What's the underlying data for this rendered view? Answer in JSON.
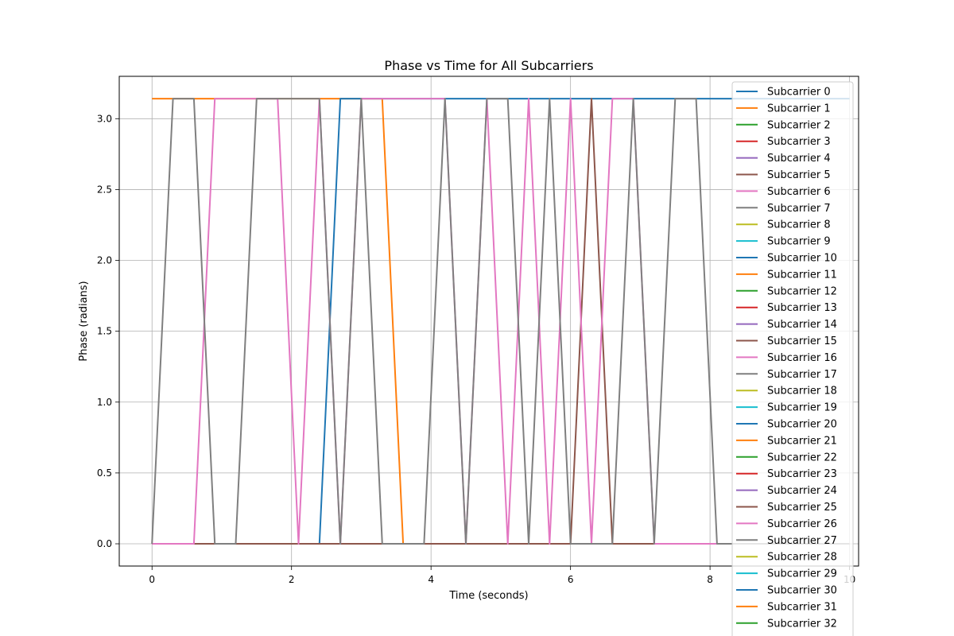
{
  "chart_data": {
    "type": "line",
    "title": "Phase vs Time for All Subcarriers",
    "xlabel": "Time (seconds)",
    "ylabel": "Phase (radians)",
    "xlim": [
      -0.47,
      10.13
    ],
    "ylim": [
      -0.157,
      3.299
    ],
    "x_ticks": [
      0,
      2,
      4,
      6,
      8,
      10
    ],
    "x_tick_labels": [
      "0",
      "2",
      "4",
      "6",
      "8",
      "10"
    ],
    "y_ticks": [
      0.0,
      0.5,
      1.0,
      1.5,
      2.0,
      2.5,
      3.0
    ],
    "y_tick_labels": [
      "0.0",
      "0.5",
      "1.0",
      "1.5",
      "2.0",
      "2.5",
      "3.0"
    ],
    "grid": true,
    "legend_position": "upper right",
    "legend_entries": [
      "Subcarrier 0",
      "Subcarrier 1",
      "Subcarrier 2",
      "Subcarrier 3",
      "Subcarrier 4",
      "Subcarrier 5",
      "Subcarrier 6",
      "Subcarrier 7",
      "Subcarrier 8",
      "Subcarrier 9",
      "Subcarrier 10",
      "Subcarrier 11",
      "Subcarrier 12",
      "Subcarrier 13",
      "Subcarrier 14",
      "Subcarrier 15",
      "Subcarrier 16",
      "Subcarrier 17",
      "Subcarrier 18",
      "Subcarrier 19",
      "Subcarrier 20",
      "Subcarrier 21",
      "Subcarrier 22",
      "Subcarrier 23",
      "Subcarrier 24",
      "Subcarrier 25",
      "Subcarrier 26",
      "Subcarrier 27",
      "Subcarrier 28",
      "Subcarrier 29",
      "Subcarrier 30",
      "Subcarrier 31",
      "Subcarrier 32"
    ],
    "palette": [
      "#1f77b4",
      "#ff7f0e",
      "#2ca02c",
      "#d62728",
      "#9467bd",
      "#8c564b",
      "#e377c2",
      "#7f7f7f",
      "#bcbd22",
      "#17becf"
    ],
    "series": [
      {
        "name": "Subcarrier 1",
        "color": "#ff7f0e",
        "x": [
          0,
          3.3,
          3.6,
          10
        ],
        "y": [
          3.1416,
          3.1416,
          0,
          0
        ]
      },
      {
        "name": "Subcarrier 30",
        "color": "#1f77b4",
        "x": [
          0,
          2.4,
          2.7,
          10
        ],
        "y": [
          0,
          0,
          3.1416,
          3.1416
        ]
      },
      {
        "name": "Subcarrier 25",
        "color": "#8c564b",
        "x": [
          0,
          6.0,
          6.3,
          6.6,
          10
        ],
        "y": [
          0,
          0,
          3.1416,
          0,
          0
        ]
      },
      {
        "name": "Subcarrier 26",
        "color": "#e377c2",
        "x": [
          0,
          0.6,
          0.9,
          1.8,
          2.1,
          2.4,
          2.7,
          3.0,
          4.2,
          4.5,
          4.8,
          5.1,
          5.4,
          5.7,
          6.0,
          6.3,
          6.6,
          6.9,
          7.2,
          10
        ],
        "y": [
          0,
          0,
          3.1416,
          3.1416,
          0,
          3.1416,
          0,
          3.1416,
          3.1416,
          0,
          3.1416,
          0,
          3.1416,
          0,
          3.1416,
          0,
          3.1416,
          3.1416,
          0,
          0
        ]
      },
      {
        "name": "Subcarrier 27",
        "color": "#7f7f7f",
        "x": [
          0,
          0.3,
          0.6,
          0.9,
          1.2,
          1.5,
          1.8,
          2.4,
          2.7,
          3.0,
          3.3,
          3.9,
          4.2,
          4.5,
          4.8,
          5.1,
          5.4,
          5.7,
          6.0,
          6.3,
          6.6,
          6.9,
          7.2,
          7.5,
          7.8,
          8.1,
          10
        ],
        "y": [
          0,
          3.1416,
          3.1416,
          0,
          0,
          3.1416,
          3.1416,
          3.1416,
          0,
          3.1416,
          0,
          0,
          3.1416,
          0,
          3.1416,
          3.1416,
          0,
          3.1416,
          0,
          0,
          0,
          3.1416,
          0,
          3.1416,
          3.1416,
          0,
          0
        ]
      }
    ]
  }
}
